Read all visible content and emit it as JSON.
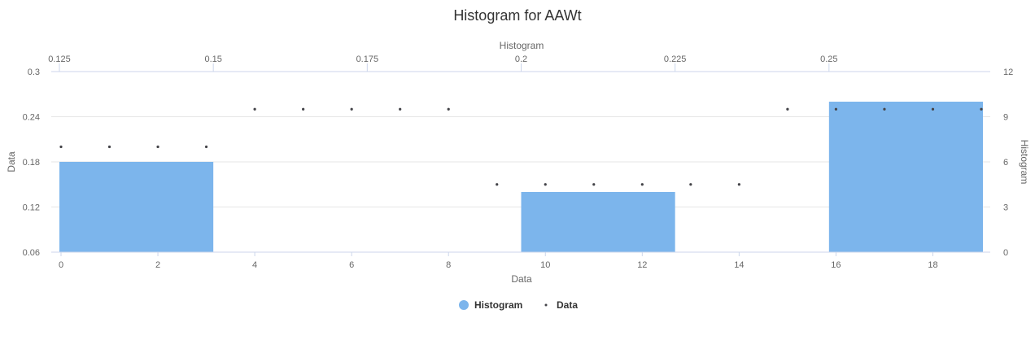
{
  "chart_data": {
    "type": "bar",
    "title": "Histogram for AAWt",
    "colors": {
      "histogram": "#7cb5ec",
      "data": "#434348",
      "grid": "#e6e6e6",
      "axis_line": "#ccd6eb"
    },
    "x_bottom": {
      "label": "Data",
      "min": 0,
      "max": 19,
      "ticks": [
        "0",
        "2",
        "4",
        "6",
        "8",
        "10",
        "12",
        "14",
        "16",
        "18"
      ]
    },
    "x_top": {
      "label": "Histogram",
      "min": 0.125,
      "max": 0.275,
      "ticks": [
        "0.125",
        "0.15",
        "0.175",
        "0.2",
        "0.225",
        "0.25"
      ]
    },
    "y_left": {
      "label": "Data",
      "min": 0.06,
      "max": 0.3,
      "ticks": [
        "0.06",
        "0.12",
        "0.18",
        "0.24",
        "0.3"
      ]
    },
    "y_right": {
      "label": "Histogram",
      "min": 0,
      "max": 12,
      "ticks": [
        "0",
        "3",
        "6",
        "9",
        "12"
      ]
    },
    "series": [
      {
        "name": "Histogram",
        "type": "column",
        "bins": [
          {
            "x0": 0.125,
            "x1": 0.15,
            "count": 6
          },
          {
            "x0": 0.15,
            "x1": 0.175,
            "count": 0
          },
          {
            "x0": 0.175,
            "x1": 0.2,
            "count": 0
          },
          {
            "x0": 0.2,
            "x1": 0.225,
            "count": 4
          },
          {
            "x0": 0.225,
            "x1": 0.25,
            "count": 0
          },
          {
            "x0": 0.25,
            "x1": 0.275,
            "count": 10
          }
        ]
      },
      {
        "name": "Data",
        "type": "scatter",
        "x": [
          0,
          1,
          2,
          3,
          4,
          5,
          6,
          7,
          8,
          9,
          10,
          11,
          12,
          13,
          14,
          15,
          16,
          17,
          18,
          19
        ],
        "y": [
          0.2,
          0.2,
          0.2,
          0.2,
          0.25,
          0.25,
          0.25,
          0.25,
          0.25,
          0.15,
          0.15,
          0.15,
          0.15,
          0.15,
          0.15,
          0.25,
          0.25,
          0.25,
          0.25,
          0.25
        ]
      }
    ],
    "legend": {
      "position": "bottom-center",
      "items": [
        "Histogram",
        "Data"
      ]
    },
    "grid": true
  }
}
